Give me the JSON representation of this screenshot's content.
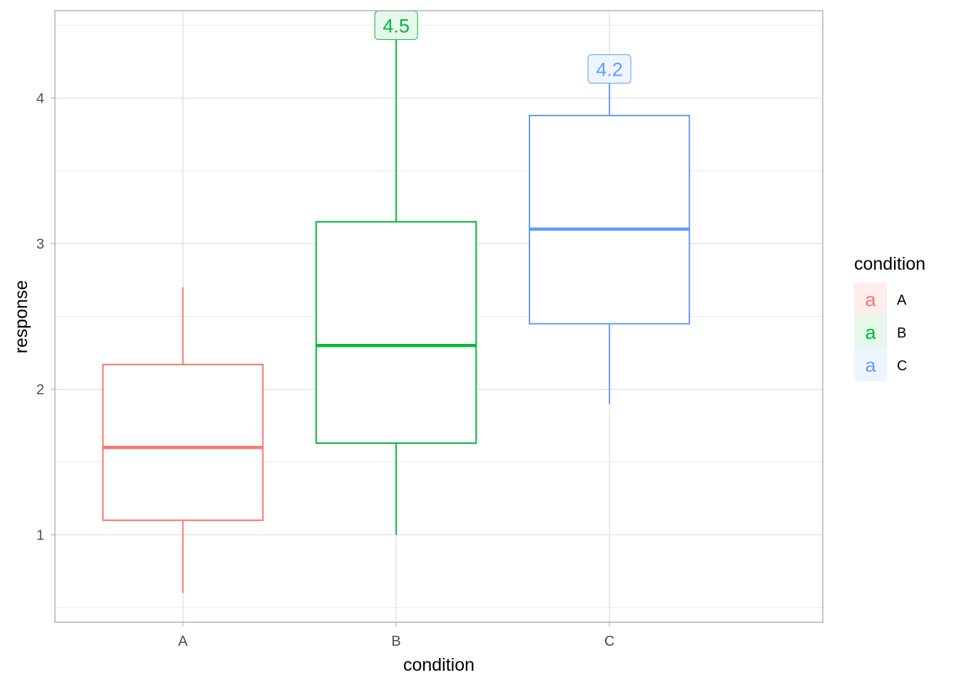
{
  "chart_data": {
    "type": "boxplot",
    "xlabel": "condition",
    "ylabel": "response",
    "categories": [
      "A",
      "B",
      "C"
    ],
    "ylim": [
      0.4,
      4.6
    ],
    "yticks": [
      1,
      2,
      3,
      4
    ],
    "grid": true,
    "legend": {
      "title": "condition",
      "position": "right",
      "key_glyph": "a",
      "entries": [
        "A",
        "B",
        "C"
      ]
    },
    "series": [
      {
        "category": "A",
        "color": "#F8766D",
        "fill_light": "#FDEDEC",
        "whisker_low": 0.6,
        "q1": 1.1,
        "median": 1.6,
        "q3": 2.17,
        "whisker_high": 2.7,
        "label": null
      },
      {
        "category": "B",
        "color": "#00BA38",
        "fill_light": "#E5F8EB",
        "whisker_low": 1.0,
        "q1": 1.63,
        "median": 2.3,
        "q3": 3.15,
        "whisker_high": 4.4,
        "label": "4.5",
        "label_value": 4.5
      },
      {
        "category": "C",
        "color": "#619CFF",
        "fill_light": "#EFF5FF",
        "whisker_low": 1.9,
        "q1": 2.45,
        "median": 3.1,
        "q3": 3.88,
        "whisker_high": 4.1,
        "label": "4.2",
        "label_value": 4.2
      }
    ]
  }
}
